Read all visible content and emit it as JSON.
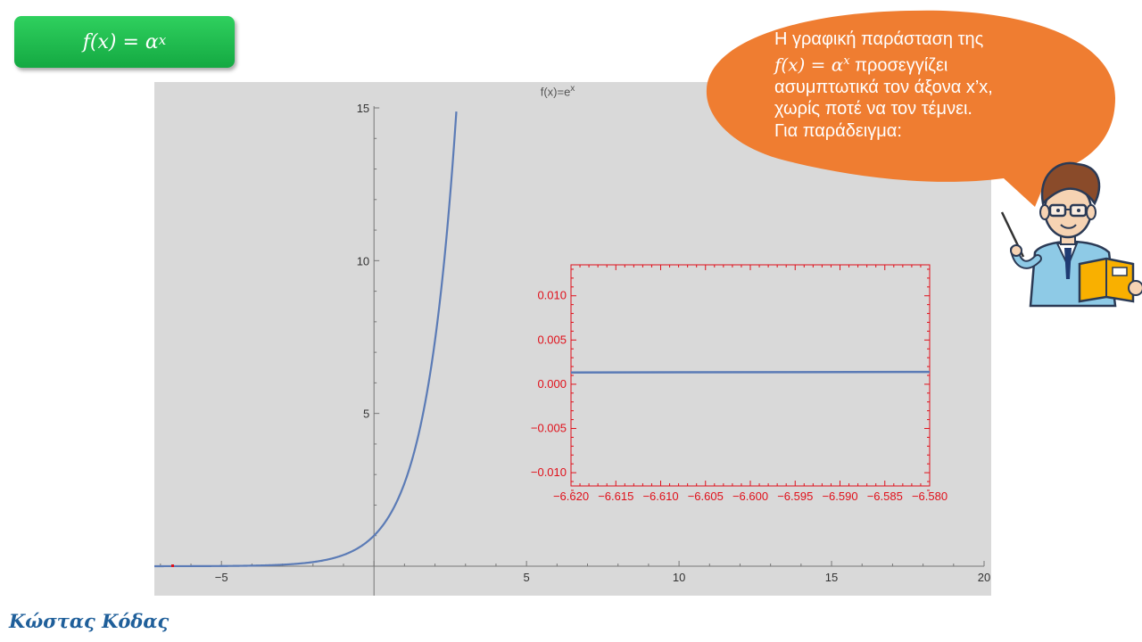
{
  "formula_box": {
    "base": "f(x) = α",
    "exponent": "x"
  },
  "chart_title_base": "f(x)=e",
  "chart_title_exp": "x",
  "speech": {
    "line1": "Η γραφική παράσταση της",
    "line2_math": "f(x) = α",
    "line2_exp": "x",
    "line2_rest": " προσεγγίζει",
    "line3": "ασυμπτωτικά τον άξονα x’x,",
    "line4": "χωρίς ποτέ να τον τέμνει.",
    "line5": "Για παράδειγμα:"
  },
  "author": "Κώστας Κόδας",
  "colors": {
    "curve": "#5b7bb6",
    "inset_axes": "#e0101a",
    "bubble": "#ef7d31",
    "formula_box": "#1fbf50",
    "panel": "#d9d9d9"
  },
  "chart_data": [
    {
      "type": "line",
      "function": "exp(x)",
      "xlim": [
        -7.2,
        20
      ],
      "ylim": [
        0,
        15
      ],
      "x_ticks": [
        -5,
        5,
        10,
        15,
        20
      ],
      "y_ticks": [
        5,
        10,
        15
      ],
      "tick_labels_x": [
        "−5",
        "5",
        "10",
        "15",
        "20"
      ],
      "tick_labels_y": [
        "5",
        "10",
        "15"
      ],
      "series": [
        {
          "x": [
            -7.2,
            -6,
            -5,
            -4,
            -3,
            -2.5,
            -2,
            -1.5,
            -1,
            -0.5,
            0,
            0.5,
            1,
            1.5,
            2,
            2.25,
            2.5,
            2.708
          ],
          "y": [
            0.0007,
            0.0025,
            0.0067,
            0.0183,
            0.0498,
            0.0821,
            0.1353,
            0.2231,
            0.3679,
            0.6065,
            1,
            1.6487,
            2.7183,
            4.4817,
            7.3891,
            9.4877,
            12.1825,
            15
          ]
        }
      ],
      "marker": {
        "x": -6.6,
        "y": 0.0014,
        "color": "#e0101a"
      }
    },
    {
      "type": "line",
      "function": "exp(x) (zoomed inset)",
      "xlim": [
        -6.62,
        -6.58
      ],
      "ylim": [
        -0.0115,
        0.0135
      ],
      "x_ticks": [
        -6.62,
        -6.615,
        -6.61,
        -6.605,
        -6.6,
        -6.595,
        -6.59,
        -6.585,
        -6.58
      ],
      "y_ticks": [
        -0.01,
        -0.005,
        0,
        0.005,
        0.01
      ],
      "tick_labels_x": [
        "−6.620",
        "−6.615",
        "−6.610",
        "−6.605",
        "−6.600",
        "−6.595",
        "−6.590",
        "−6.585",
        "−6.580"
      ],
      "tick_labels_y": [
        "−0.010",
        "−0.005",
        "0.000",
        "0.005",
        "0.010"
      ],
      "series": [
        {
          "x": [
            -6.62,
            -6.58
          ],
          "y": [
            0.00133,
            0.00139
          ]
        }
      ]
    }
  ]
}
